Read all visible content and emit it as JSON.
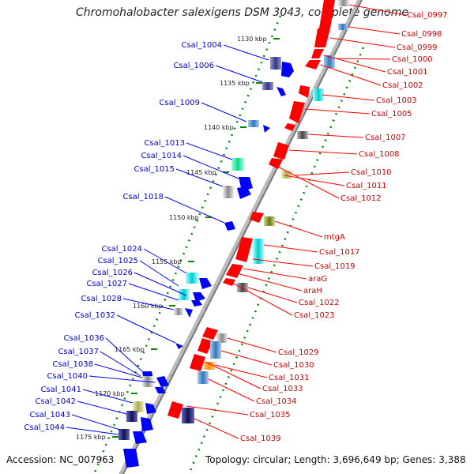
{
  "title": "Chromohalobacter salexigens DSM 3043, complete genome",
  "footer": {
    "accession": "Accession: NC_007963",
    "topology": "Topology: circular; Length: 3,696,649 bp; Genes: 3,388"
  },
  "colors": {
    "forward_gene": "#0000ff",
    "reverse_gene": "#ff0000",
    "backbone": "#888888",
    "tick": "#008800",
    "forward_label": "#0000cc",
    "reverse_label": "#cc0000"
  },
  "kbp_marks": [
    "1130 kbp",
    "1135 kbp",
    "1140 kbp",
    "1145 kbp",
    "1150 kbp",
    "1155 kbp",
    "1160 kbp",
    "1165 kbp",
    "1170 kbp",
    "1175 kbp"
  ],
  "left_genes": [
    "Csal_1004",
    "Csal_1006",
    "Csal_1009",
    "Csal_1013",
    "Csal_1014",
    "Csal_1015",
    "Csal_1018",
    "Csal_1024",
    "Csal_1025",
    "Csal_1026",
    "Csal_1027",
    "Csal_1028",
    "Csal_1032",
    "Csal_1036",
    "Csal_1037",
    "Csal_1038",
    "Csal_1040",
    "Csal_1041",
    "Csal_1042",
    "Csal_1043",
    "Csal_1044"
  ],
  "right_genes": [
    "Csal_0997",
    "Csal_0998",
    "Csal_0999",
    "Csal_1000",
    "Csal_1001",
    "Csal_1002",
    "Csal_1003",
    "Csal_1005",
    "Csal_1007",
    "Csal_1008",
    "Csal_1010",
    "Csal_1011",
    "Csal_1012",
    "mtgA",
    "Csal_1017",
    "Csal_1019",
    "araG",
    "araH",
    "Csal_1022",
    "Csal_1023",
    "Csal_1029",
    "Csal_1030",
    "Csal_1031",
    "Csal_1033",
    "Csal_1034",
    "Csal_1035",
    "Csal_1039"
  ]
}
